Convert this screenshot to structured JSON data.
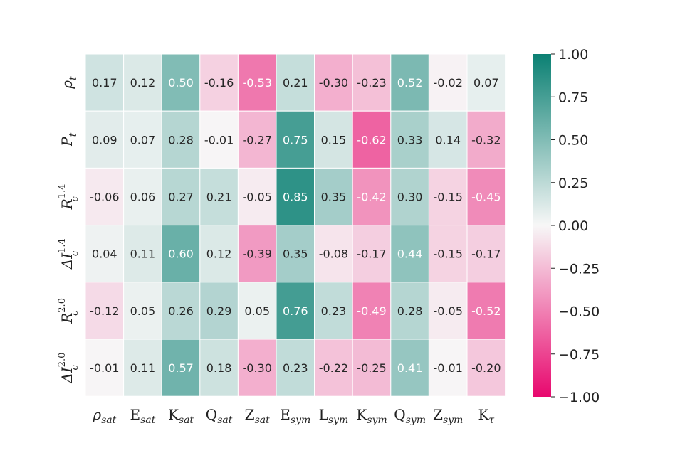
{
  "chart_data": {
    "type": "heatmap",
    "rows": [
      {
        "base": "ρ",
        "sub": "t",
        "sup": ""
      },
      {
        "base": "P",
        "sub": "t",
        "sup": ""
      },
      {
        "base": "R",
        "sub": "c",
        "sup": "1.4"
      },
      {
        "base": "ΔI",
        "sub": "c",
        "sup": "1.4"
      },
      {
        "base": "R",
        "sub": "c",
        "sup": "2.0"
      },
      {
        "base": "ΔI",
        "sub": "c",
        "sup": "2.0"
      }
    ],
    "columns": [
      {
        "base": "ρ",
        "sub": "sat"
      },
      {
        "base": "E",
        "sub": "sat"
      },
      {
        "base": "K",
        "sub": "sat"
      },
      {
        "base": "Q",
        "sub": "sat"
      },
      {
        "base": "Z",
        "sub": "sat"
      },
      {
        "base": "E",
        "sub": "sym"
      },
      {
        "base": "L",
        "sub": "sym"
      },
      {
        "base": "K",
        "sub": "sym"
      },
      {
        "base": "Q",
        "sub": "sym"
      },
      {
        "base": "Z",
        "sub": "sym"
      },
      {
        "base": "K",
        "sub": "τ"
      }
    ],
    "values": [
      [
        0.17,
        0.12,
        0.5,
        -0.16,
        -0.53,
        0.21,
        -0.3,
        -0.23,
        0.52,
        -0.02,
        0.07
      ],
      [
        0.09,
        0.07,
        0.28,
        -0.01,
        -0.27,
        0.75,
        0.15,
        -0.62,
        0.33,
        0.14,
        -0.32
      ],
      [
        -0.06,
        0.06,
        0.27,
        0.21,
        -0.05,
        0.85,
        0.35,
        -0.42,
        0.3,
        -0.15,
        -0.45
      ],
      [
        0.04,
        0.11,
        0.6,
        0.12,
        -0.39,
        0.35,
        -0.08,
        -0.17,
        0.44,
        -0.15,
        -0.17
      ],
      [
        -0.12,
        0.05,
        0.26,
        0.29,
        0.05,
        0.76,
        0.23,
        -0.49,
        0.28,
        -0.05,
        -0.52
      ],
      [
        -0.01,
        0.11,
        0.57,
        0.18,
        -0.3,
        0.23,
        -0.22,
        -0.25,
        0.41,
        -0.01,
        -0.2
      ]
    ],
    "value_labels": [
      [
        "0.17",
        "0.12",
        "0.50",
        "-0.16",
        "-0.53",
        "0.21",
        "-0.30",
        "-0.23",
        "0.52",
        "-0.02",
        "0.07"
      ],
      [
        "0.09",
        "0.07",
        "0.28",
        "-0.01",
        "-0.27",
        "0.75",
        "0.15",
        "-0.62",
        "0.33",
        "0.14",
        "-0.32"
      ],
      [
        "-0.06",
        "0.06",
        "0.27",
        "0.21",
        "-0.05",
        "0.85",
        "0.35",
        "-0.42",
        "0.30",
        "-0.15",
        "-0.45"
      ],
      [
        "0.04",
        "0.11",
        "0.60",
        "0.12",
        "-0.39",
        "0.35",
        "-0.08",
        "-0.17",
        "0.44",
        "-0.15",
        "-0.17"
      ],
      [
        "-0.12",
        "0.05",
        "0.26",
        "0.29",
        "0.05",
        "0.76",
        "0.23",
        "-0.49",
        "0.28",
        "-0.05",
        "-0.52"
      ],
      [
        "-0.01",
        "0.11",
        "0.57",
        "0.18",
        "-0.30",
        "0.23",
        "-0.22",
        "-0.25",
        "0.41",
        "-0.01",
        "-0.20"
      ]
    ],
    "vmin": -1.0,
    "vmax": 1.0,
    "colormap": {
      "negative": "#e8086e",
      "neutral": "#f7f7f7",
      "positive": "#0b8073"
    },
    "colorbar": {
      "ticks": [
        1.0,
        0.75,
        0.5,
        0.25,
        0.0,
        -0.25,
        -0.5,
        -0.75,
        -1.0
      ],
      "tick_labels": [
        "1.00",
        "0.75",
        "0.50",
        "0.25",
        "0.00",
        "−0.25",
        "−0.50",
        "−0.75",
        "−1.00"
      ]
    },
    "title": "",
    "xlabel": "",
    "ylabel": ""
  }
}
